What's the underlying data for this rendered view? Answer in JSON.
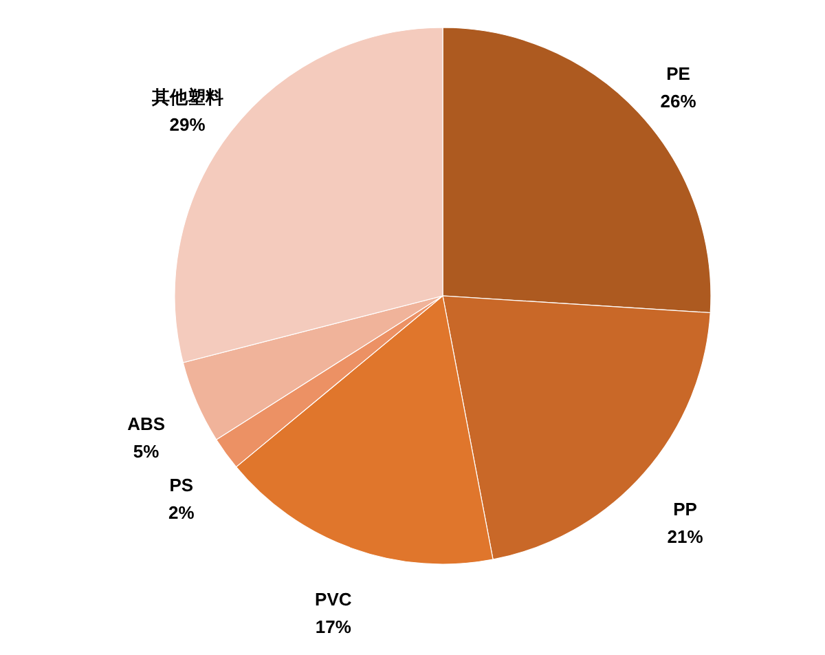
{
  "chart_data": {
    "type": "pie",
    "categories": [
      "PE",
      "PP",
      "PVC",
      "PS",
      "ABS",
      "其他塑料"
    ],
    "values": [
      26,
      21,
      17,
      2,
      5,
      29
    ],
    "colors": [
      "#ad5a20",
      "#c96828",
      "#e0762c",
      "#ec9164",
      "#f0b39a",
      "#f4cbbd"
    ],
    "value_labels": [
      "26%",
      "21%",
      "17%",
      "2%",
      "5%",
      "29%"
    ]
  }
}
